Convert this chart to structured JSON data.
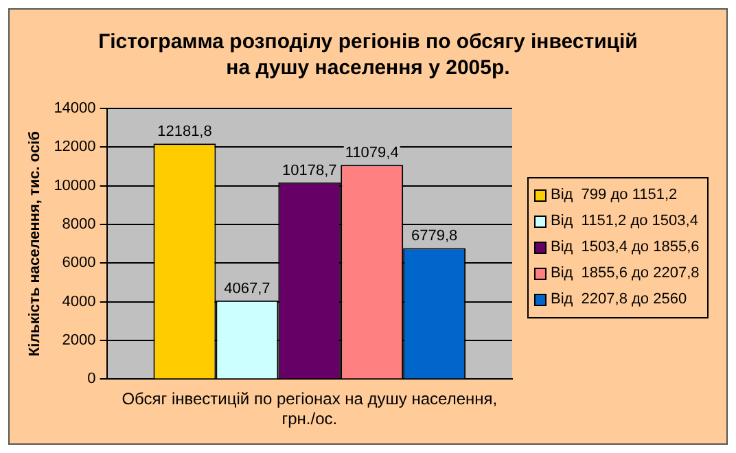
{
  "chart_data": {
    "type": "bar",
    "title": "Гістограмма розподілу регіонів по обсягу інвестицій\nна душу населення у 2005р.",
    "xlabel": "Обсяг інвестицій по регіонах на душу населення,\nгрн./ос.",
    "ylabel": "Кількість населення, тис. осіб",
    "categories": [
      null
    ],
    "series": [
      {
        "name": "Від  799 до 1151,2",
        "color": "#ffcc00",
        "values": [
          12181.8
        ],
        "value_labels": [
          "12181,8"
        ]
      },
      {
        "name": "Від  1151,2 до 1503,4",
        "color": "#ccffff",
        "values": [
          4067.7
        ],
        "value_labels": [
          "4067,7"
        ]
      },
      {
        "name": "Від  1503,4 до 1855,6",
        "color": "#660066",
        "values": [
          10178.7
        ],
        "value_labels": [
          "10178,7"
        ]
      },
      {
        "name": "Від  1855,6 до 2207,8",
        "color": "#ff8080",
        "values": [
          11079.4
        ],
        "value_labels": [
          "11079,4"
        ]
      },
      {
        "name": "Від  2207,8 до 2560",
        "color": "#0066cc",
        "values": [
          6779.8
        ],
        "value_labels": [
          "6779,8"
        ]
      }
    ],
    "ylim": [
      0,
      14000
    ],
    "yticks": [
      0,
      2000,
      4000,
      6000,
      8000,
      10000,
      12000,
      14000
    ],
    "grid": "y",
    "legend": "right"
  }
}
